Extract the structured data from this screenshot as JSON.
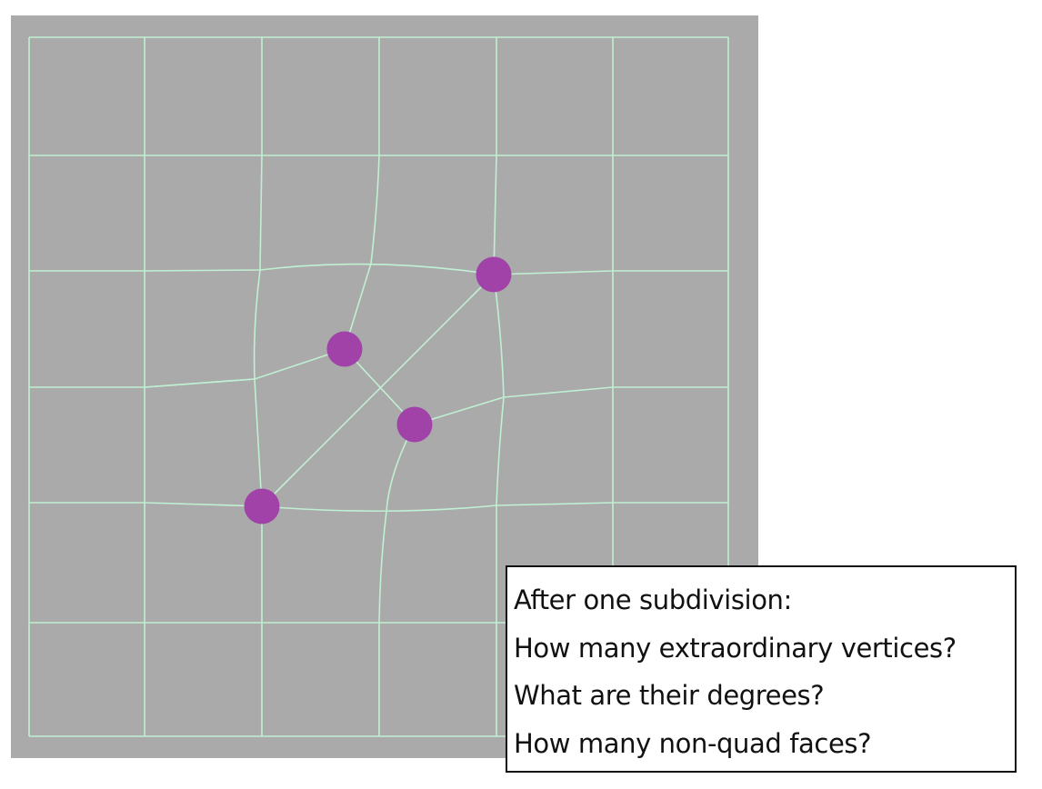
{
  "figure": {
    "type": "quad-mesh-subdivision-exercise",
    "background_color": "#abaaab",
    "edge_color": "#bff0d2",
    "vertex_color": "#a042a8",
    "extraordinary_vertices_highlighted": 4
  },
  "question_box": {
    "lines": [
      "After one subdivision:",
      "How many extraordinary vertices?",
      "What are their degrees?",
      "How many non-quad faces?"
    ]
  }
}
